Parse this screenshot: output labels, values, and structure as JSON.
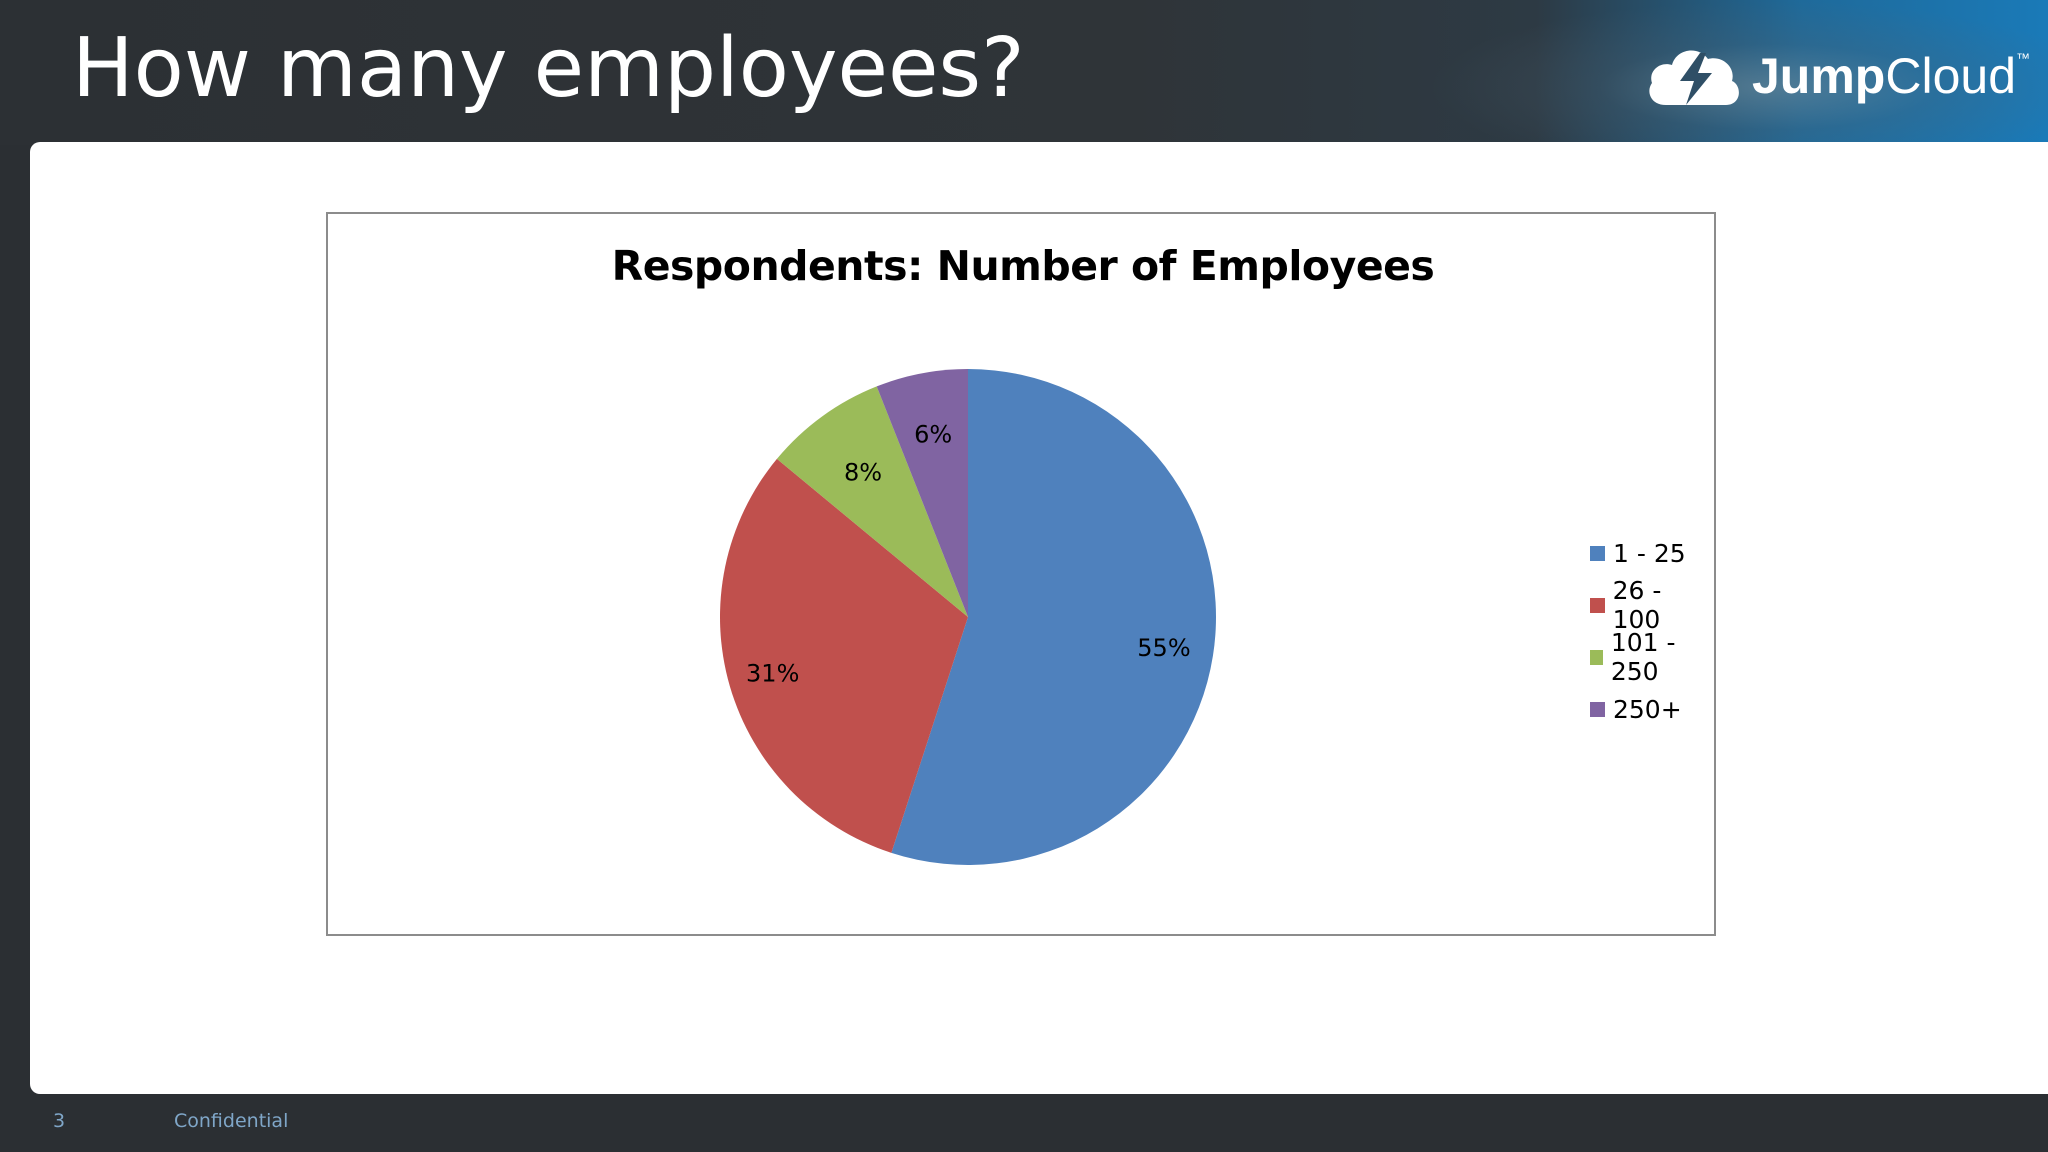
{
  "slide": {
    "title": "How many employees?",
    "page_number": "3",
    "footer_text": "Confidential"
  },
  "logo": {
    "icon": "cloud-bolt-icon",
    "text_bold": "Jump",
    "text_regular": "Cloud",
    "trademark": "™"
  },
  "colors": {
    "header_bg": "#2c3034",
    "accent_blue": "#1a7ab8"
  },
  "chart_data": {
    "type": "pie",
    "title": "Respondents: Number of Employees",
    "categories": [
      "1 - 25",
      "26 - 100",
      "101 - 250",
      "250+"
    ],
    "values": [
      55,
      31,
      8,
      6
    ],
    "labels": [
      "55%",
      "31%",
      "8%",
      "6%"
    ],
    "colors": [
      "#4f81bd",
      "#c0504d",
      "#9bbb59",
      "#8064a2"
    ],
    "legend": "right",
    "start": "12 o'clock",
    "direction": "clockwise"
  }
}
